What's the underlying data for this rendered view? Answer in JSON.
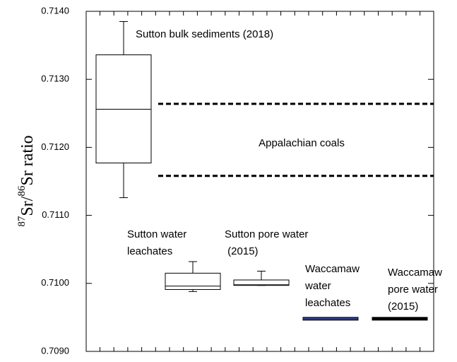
{
  "chart_data": {
    "type": "box",
    "ylabel": "87Sr/86Sr ratio",
    "ylim": [
      0.709,
      0.714
    ],
    "yticks": [
      {
        "value": 0.709,
        "label": "0.7090"
      },
      {
        "value": 0.71,
        "label": "0.7100"
      },
      {
        "value": 0.711,
        "label": "0.7110"
      },
      {
        "value": 0.712,
        "label": "0.7120"
      },
      {
        "value": 0.713,
        "label": "0.7130"
      },
      {
        "value": 0.714,
        "label": "0.7140"
      }
    ],
    "categories": [
      "Sutton bulk sediments (2018)",
      "Sutton water\nleachates",
      "Sutton pore water\n (2015)",
      "Waccamaw\nwater\nleachates",
      "Waccamaw\npore water\n(2015)"
    ],
    "boxes": [
      {
        "whisker_high": 0.71385,
        "q3": 0.71336,
        "median": 0.71256,
        "q1": 0.71177,
        "whisker_low": 0.71126,
        "color": "#000000"
      },
      {
        "whisker_high": 0.71032,
        "q3": 0.71015,
        "median": 0.70996,
        "q1": 0.70991,
        "whisker_low": 0.70988,
        "color": "#000000"
      },
      {
        "whisker_high": 0.71018,
        "q3": 0.71005,
        "median": 0.70998,
        "q1": 0.70997,
        "whisker_low": 0.70997,
        "color": "#000000"
      },
      {
        "whisker_high": 0.70948,
        "q3": 0.70948,
        "median": 0.70948,
        "q1": 0.70948,
        "whisker_low": 0.70948,
        "color": "#2e3a8c"
      },
      {
        "whisker_high": 0.70948,
        "q3": 0.70948,
        "median": 0.70948,
        "q1": 0.70948,
        "whisker_low": 0.70948,
        "color": "#000000"
      }
    ],
    "reference_band": {
      "label": "Appalachian coals",
      "values": [
        0.71264,
        0.71158
      ]
    }
  }
}
